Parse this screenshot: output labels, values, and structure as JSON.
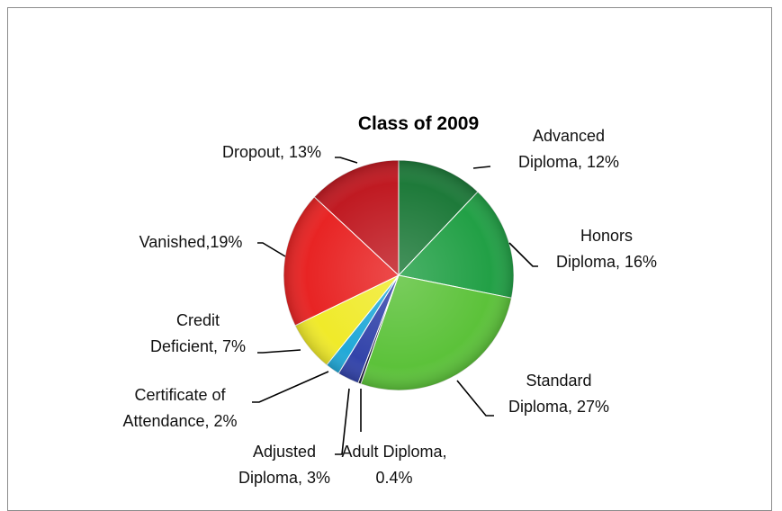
{
  "chart_data": {
    "type": "pie",
    "title": "Class of 2009",
    "slices": [
      {
        "name": "Advanced Diploma",
        "value": 12,
        "label_lines": [
          "Advanced",
          "Diploma, 12%"
        ],
        "color": "#1e7a3a"
      },
      {
        "name": "Honors Diploma",
        "value": 16,
        "label_lines": [
          "Honors",
          "Diploma, 16%"
        ],
        "color": "#22a046"
      },
      {
        "name": "Standard Diploma",
        "value": 27,
        "label_lines": [
          "Standard",
          "Diploma, 27%"
        ],
        "color": "#5cc23a"
      },
      {
        "name": "Adult Diploma",
        "value": 0.4,
        "label_lines": [
          "Adult Diploma,",
          "0.4%"
        ],
        "color": "#1a1a3a"
      },
      {
        "name": "Adjusted Diploma",
        "value": 3,
        "label_lines": [
          "Adjusted",
          "Diploma, 3%"
        ],
        "color": "#3344aa"
      },
      {
        "name": "Certificate of Attendance",
        "value": 2,
        "label_lines": [
          "Certificate of",
          "Attendance, 2%"
        ],
        "color": "#22a9d8"
      },
      {
        "name": "Credit Deficient",
        "value": 7,
        "label_lines": [
          "Credit",
          "Deficient, 7%"
        ],
        "color": "#f0ea2a"
      },
      {
        "name": "Vanished",
        "value": 19,
        "label_lines": [
          "Vanished,19%"
        ],
        "color": "#e82424"
      },
      {
        "name": "Dropout",
        "value": 13,
        "label_lines": [
          "Dropout,  13%"
        ],
        "color": "#c01a22"
      }
    ],
    "legend": "none"
  }
}
